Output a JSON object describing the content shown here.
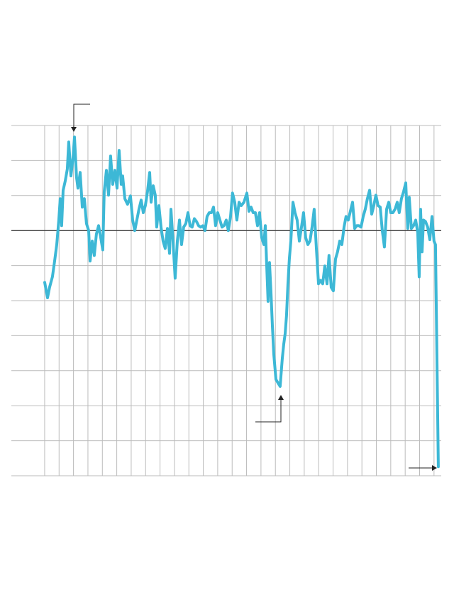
{
  "chart_data": {
    "type": "line",
    "color": "#3db8d6",
    "grid": true,
    "xlim": [
      -2.31,
      27.5
    ],
    "xticks": [
      0,
      1,
      2,
      3,
      4,
      5,
      6,
      7,
      8,
      9,
      10,
      11,
      12,
      13,
      14,
      15,
      16,
      17,
      18,
      19,
      20,
      21,
      22,
      23,
      24,
      25,
      26,
      27
    ],
    "ylim": [
      -7,
      3
    ],
    "yticks": [
      -7,
      -6,
      -5,
      -4,
      -3,
      -2,
      -1,
      0,
      1,
      2,
      3
    ],
    "x": [
      0.0,
      0.2,
      0.34,
      0.54,
      0.69,
      0.84,
      0.98,
      1.08,
      1.18,
      1.28,
      1.43,
      1.57,
      1.67,
      1.82,
      1.97,
      2.07,
      2.21,
      2.31,
      2.46,
      2.61,
      2.75,
      2.9,
      3.05,
      3.15,
      3.3,
      3.44,
      3.59,
      3.74,
      3.89,
      4.03,
      4.13,
      4.28,
      4.43,
      4.57,
      4.72,
      4.87,
      5.02,
      5.16,
      5.31,
      5.41,
      5.56,
      5.75,
      5.95,
      6.1,
      6.25,
      6.39,
      6.54,
      6.69,
      6.84,
      6.98,
      7.13,
      7.28,
      7.38,
      7.53,
      7.67,
      7.77,
      7.92,
      8.07,
      8.21,
      8.36,
      8.51,
      8.66,
      8.76,
      8.9,
      9.05,
      9.2,
      9.35,
      9.49,
      9.64,
      9.79,
      9.94,
      10.08,
      10.23,
      10.38,
      10.53,
      10.67,
      10.82,
      10.97,
      11.12,
      11.26,
      11.41,
      11.56,
      11.71,
      11.85,
      12.0,
      12.15,
      12.3,
      12.44,
      12.59,
      12.74,
      12.89,
      13.03,
      13.18,
      13.33,
      13.48,
      13.63,
      13.82,
      14.02,
      14.17,
      14.31,
      14.46,
      14.61,
      14.76,
      14.9,
      15.05,
      15.2,
      15.3,
      15.4,
      15.49,
      15.59,
      15.69,
      15.79,
      15.89,
      16.04,
      16.18,
      16.33,
      16.48,
      16.58,
      16.68,
      16.77,
      16.87,
      16.97,
      17.07,
      17.22,
      17.36,
      17.51,
      17.66,
      17.81,
      17.95,
      18.1,
      18.25,
      18.4,
      18.54,
      18.69,
      18.84,
      18.99,
      19.13,
      19.28,
      19.43,
      19.58,
      19.72,
      19.87,
      20.02,
      20.17,
      20.31,
      20.46,
      20.61,
      20.76,
      20.9,
      21.05,
      21.2,
      21.35,
      21.5,
      21.64,
      21.79,
      21.94,
      22.09,
      22.23,
      22.38,
      22.53,
      22.68,
      22.82,
      22.97,
      23.12,
      23.27,
      23.41,
      23.56,
      23.71,
      23.86,
      24.0,
      24.15,
      24.3,
      24.45,
      24.59,
      24.74,
      24.89,
      25.04,
      25.18,
      25.28,
      25.43,
      25.58,
      25.73,
      25.87,
      25.97,
      26.07,
      26.17,
      26.27,
      26.41,
      26.56,
      26.71,
      26.86,
      27.0,
      27.1,
      27.2,
      27.3
    ],
    "values": [
      -1.48,
      -1.92,
      -1.62,
      -1.32,
      -0.87,
      -0.4,
      0.3,
      0.91,
      0.14,
      1.15,
      1.42,
      1.76,
      2.53,
      1.56,
      2.09,
      2.67,
      1.52,
      1.21,
      1.66,
      0.67,
      0.91,
      0.2,
      0.0,
      -0.87,
      -0.3,
      -0.71,
      -0.1,
      0.14,
      -0.2,
      -0.55,
      1.11,
      1.72,
      1.01,
      2.13,
      1.32,
      1.72,
      1.21,
      2.29,
      1.32,
      1.56,
      0.91,
      0.75,
      0.99,
      0.3,
      0.0,
      0.3,
      0.61,
      0.87,
      0.51,
      0.71,
      1.11,
      1.66,
      0.81,
      1.28,
      1.01,
      0.1,
      0.71,
      0.1,
      -0.3,
      -0.51,
      0.06,
      -0.65,
      0.61,
      -0.3,
      -1.36,
      -0.3,
      0.3,
      -0.4,
      0.1,
      0.2,
      0.51,
      0.14,
      0.1,
      0.34,
      0.26,
      0.14,
      0.1,
      0.14,
      0.0,
      0.4,
      0.51,
      0.51,
      0.67,
      0.14,
      0.51,
      0.3,
      0.1,
      0.14,
      0.3,
      0.0,
      0.4,
      1.07,
      0.81,
      0.3,
      0.81,
      0.71,
      0.81,
      1.07,
      0.55,
      0.67,
      0.51,
      0.51,
      0.14,
      0.51,
      -0.2,
      -0.4,
      0.14,
      -1.01,
      -2.02,
      -0.91,
      -1.72,
      -2.73,
      -3.54,
      -4.25,
      -4.35,
      -4.45,
      -3.64,
      -3.24,
      -2.94,
      -2.43,
      -1.52,
      -0.81,
      -0.3,
      0.81,
      0.51,
      0.3,
      -0.3,
      0.1,
      0.51,
      -0.2,
      -0.4,
      -0.3,
      0.1,
      0.61,
      -0.51,
      -1.52,
      -1.42,
      -1.52,
      -1.01,
      -1.52,
      -0.71,
      -1.62,
      -1.72,
      -0.81,
      -0.61,
      -0.3,
      -0.4,
      0.1,
      0.4,
      0.3,
      0.55,
      0.81,
      0.06,
      0.14,
      0.14,
      0.1,
      0.4,
      0.61,
      0.91,
      1.15,
      0.47,
      0.71,
      1.01,
      0.71,
      0.67,
      0.0,
      -0.47,
      0.61,
      0.81,
      0.51,
      0.51,
      0.61,
      0.81,
      0.51,
      0.91,
      1.11,
      1.36,
      0.06,
      0.95,
      0.06,
      0.14,
      0.3,
      -0.06,
      -1.32,
      0.61,
      -0.61,
      0.3,
      0.26,
      0.1,
      -0.26,
      0.4,
      -0.3,
      -0.4,
      -3.54,
      -6.74
    ]
  }
}
